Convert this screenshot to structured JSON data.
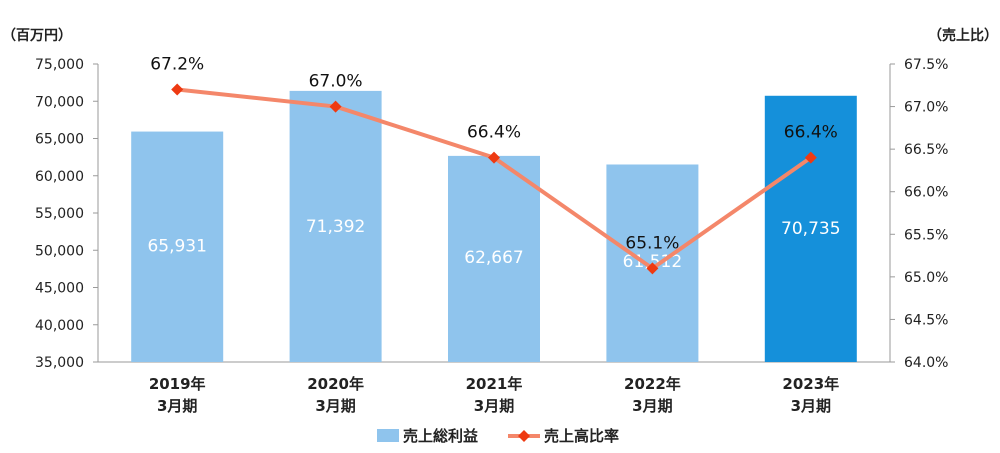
{
  "chart_data": {
    "type": "bar+line",
    "categories": [
      [
        "2019年",
        "3月期"
      ],
      [
        "2020年",
        "3月期"
      ],
      [
        "2021年",
        "3月期"
      ],
      [
        "2022年",
        "3月期"
      ],
      [
        "2023年",
        "3月期"
      ]
    ],
    "left_axis": {
      "unit_label": "（百万円）",
      "ylim": [
        35000,
        75000
      ],
      "ticks": [
        "35,000",
        "40,000",
        "45,000",
        "50,000",
        "55,000",
        "60,000",
        "65,000",
        "70,000",
        "75,000"
      ]
    },
    "right_axis": {
      "unit_label": "（売上比）",
      "ylim": [
        64.0,
        67.5
      ],
      "ticks": [
        "64.0%",
        "64.5%",
        "65.0%",
        "65.5%",
        "66.0%",
        "66.5%",
        "67.0%",
        "67.5%"
      ]
    },
    "series": [
      {
        "name": "売上総利益",
        "type": "bar",
        "axis": "left",
        "values": [
          65931,
          71392,
          62667,
          61512,
          70735
        ],
        "labels": [
          "65,931",
          "71,392",
          "62,667",
          "61,512",
          "70,735"
        ],
        "colors": [
          "#8fc4ed",
          "#8fc4ed",
          "#8fc4ed",
          "#8fc4ed",
          "#1590da"
        ]
      },
      {
        "name": "売上高比率",
        "type": "line",
        "axis": "right",
        "values": [
          67.2,
          67.0,
          66.4,
          65.1,
          66.4
        ],
        "labels": [
          "67.2%",
          "67.0%",
          "66.4%",
          "65.1%",
          "66.4%"
        ],
        "line_color": "#f4876a",
        "marker_color": "#ee3a12"
      }
    ],
    "grid": false,
    "legend_position": "bottom-center"
  }
}
